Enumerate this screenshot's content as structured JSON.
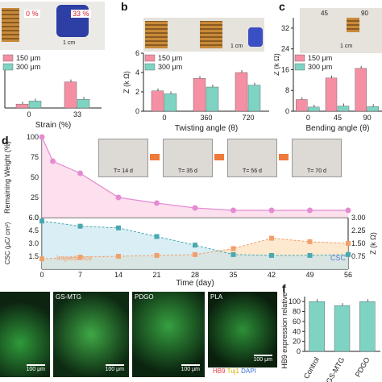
{
  "panels": {
    "a": {
      "label": "",
      "photo_tags": [
        "0 %",
        "33 %"
      ],
      "scale": "1 cm"
    },
    "b": {
      "label": "b",
      "scale": "1 cm"
    },
    "c": {
      "label": "c",
      "photo_tags": [
        "45",
        "90"
      ],
      "scale": "1 cm"
    },
    "d": {
      "label": "d",
      "photo_tags": [
        "T= 14 d",
        "T= 35 d",
        "T= 56 d",
        "T= 70 d"
      ]
    },
    "e": {
      "labels": [
        "",
        "GS-MTG",
        "PDGO",
        "PLA"
      ],
      "scale": "100 μm",
      "legend": [
        "HB9",
        "Tuj1",
        "DAPI"
      ],
      "legend_colors": [
        "#e63a3a",
        "#e0c020",
        "#3a6fd8"
      ]
    },
    "f": {
      "label": "f"
    }
  },
  "colors": {
    "um150": "#f58fa4",
    "um300": "#7fd3c3",
    "weight": "#e58bd2",
    "csc": "#4aa8b0",
    "impedance": "#f2a06a"
  },
  "chart_data": [
    {
      "id": "a",
      "type": "bar",
      "categories": [
        "0",
        "33"
      ],
      "series": [
        {
          "name": "150 μm",
          "values": [
            0.9,
            6.0
          ]
        },
        {
          "name": "300 μm",
          "values": [
            1.6,
            2.0
          ]
        }
      ],
      "xlabel": "Strain (%)",
      "ylim": [
        0,
        10
      ],
      "legend": "top-left"
    },
    {
      "id": "b",
      "type": "bar",
      "categories": [
        "0",
        "360",
        "720"
      ],
      "series": [
        {
          "name": "150 μm",
          "values": [
            2.1,
            3.4,
            4.0
          ]
        },
        {
          "name": "300 μm",
          "values": [
            1.8,
            2.5,
            2.7
          ]
        }
      ],
      "xlabel": "Twisting angle (θ)",
      "ylabel": "Z (k Ω)",
      "ylim": [
        0,
        6
      ],
      "yticks": [
        0,
        2,
        4,
        6
      ],
      "legend": "top-left"
    },
    {
      "id": "c",
      "type": "bar",
      "categories": [
        "0",
        "45",
        "90"
      ],
      "series": [
        {
          "name": "150 μm",
          "values": [
            4.5,
            12.8,
            16.5
          ]
        },
        {
          "name": "300 μm",
          "values": [
            1.6,
            2.0,
            1.8
          ]
        }
      ],
      "xlabel": "Bending angle (θ)",
      "ylabel": "Z (k Ω)",
      "ylim": [
        0,
        36
      ],
      "yticks": [
        0,
        8,
        16,
        24,
        32
      ],
      "legend": "top-left"
    },
    {
      "id": "d-weight",
      "type": "line",
      "x": [
        0,
        2,
        7,
        14,
        21,
        28,
        35,
        42,
        49,
        56
      ],
      "values": [
        100,
        70,
        55,
        25,
        18,
        12,
        9,
        9,
        9,
        9
      ],
      "ylabel": "Remaining Weight (%)",
      "ylim": [
        0,
        100
      ],
      "yticks": [
        0,
        25,
        50,
        75,
        100
      ]
    },
    {
      "id": "d-electro",
      "type": "line",
      "x": [
        0,
        7,
        14,
        21,
        28,
        35,
        42,
        49,
        56
      ],
      "xticks": [
        0,
        7,
        14,
        21,
        28,
        35,
        42,
        49,
        56
      ],
      "xlabel": "Time (day)",
      "series": [
        {
          "name": "CSC",
          "axis": "left",
          "values": [
            5.6,
            5.0,
            4.8,
            3.8,
            2.8,
            1.7,
            1.6,
            1.6,
            1.7
          ]
        },
        {
          "name": "Impedance",
          "axis": "right",
          "values": [
            0.6,
            0.7,
            0.75,
            0.8,
            0.85,
            1.2,
            1.8,
            1.6,
            1.5
          ]
        }
      ],
      "ylabel_left": "CSC (μC/ cm²)",
      "ylim_left": [
        0,
        6
      ],
      "yticks_left": [
        "1.5",
        "3.0",
        "4.5",
        "6.0"
      ],
      "ylabel_right": "Z (k Ω)",
      "ylim_right": [
        0,
        3
      ],
      "yticks_right": [
        "0.75",
        "1.50",
        "2.25",
        "3.00"
      ]
    },
    {
      "id": "f",
      "type": "bar",
      "categories": [
        "Control",
        "GS-MTG",
        "PDGO"
      ],
      "values": [
        100,
        92,
        100
      ],
      "ylabel": "HB9 expression relative (%)",
      "ylim": [
        0,
        110
      ],
      "yticks": [
        0,
        20,
        40,
        60,
        80,
        100
      ]
    }
  ]
}
